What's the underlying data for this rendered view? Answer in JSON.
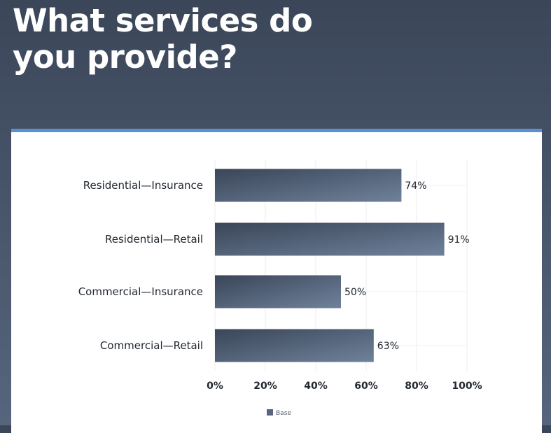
{
  "title_lines": [
    "What services do",
    "you provide?"
  ],
  "chart_data": {
    "type": "bar",
    "orientation": "horizontal",
    "categories": [
      "Residential—Insurance",
      "Residential—Retail",
      "Commercial—Insurance",
      "Commercial—Retail"
    ],
    "series": [
      {
        "name": "Base",
        "values": [
          74,
          91,
          50,
          63
        ]
      }
    ],
    "value_labels": [
      "74%",
      "91%",
      "50%",
      "63%"
    ],
    "xlim": [
      0,
      100
    ],
    "x_ticks": [
      "0%",
      "20%",
      "40%",
      "60%",
      "80%",
      "100%"
    ],
    "grid": true,
    "legend": "bottom-center",
    "colors": {
      "bar_dark": "#3a4558",
      "bar_light": "#6f829b",
      "accent": "#5b8fd0"
    }
  }
}
